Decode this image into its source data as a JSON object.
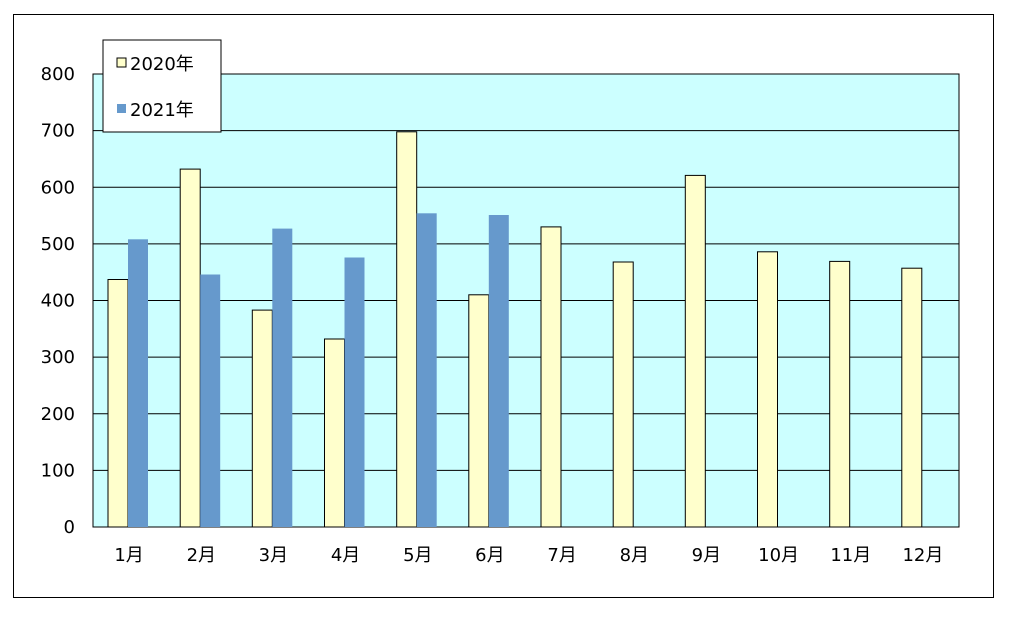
{
  "chart_data": {
    "type": "bar",
    "categories": [
      "1月",
      "2月",
      "3月",
      "4月",
      "5月",
      "6月",
      "7月",
      "8月",
      "9月",
      "10月",
      "11月",
      "12月"
    ],
    "series": [
      {
        "name": "2020年",
        "color": "#FFFFCC",
        "values": [
          437,
          632,
          383,
          332,
          698,
          410,
          530,
          468,
          621,
          486,
          469,
          457
        ]
      },
      {
        "name": "2021年",
        "color": "#6699CC",
        "values": [
          508,
          446,
          527,
          476,
          554,
          551,
          null,
          null,
          null,
          null,
          null,
          null
        ]
      }
    ],
    "yticks": [
      0,
      100,
      200,
      300,
      400,
      500,
      600,
      700,
      800
    ],
    "ylim": [
      0,
      800
    ],
    "plot_background": "#CCFFFF",
    "grid": true,
    "legend_position": "top-left"
  }
}
